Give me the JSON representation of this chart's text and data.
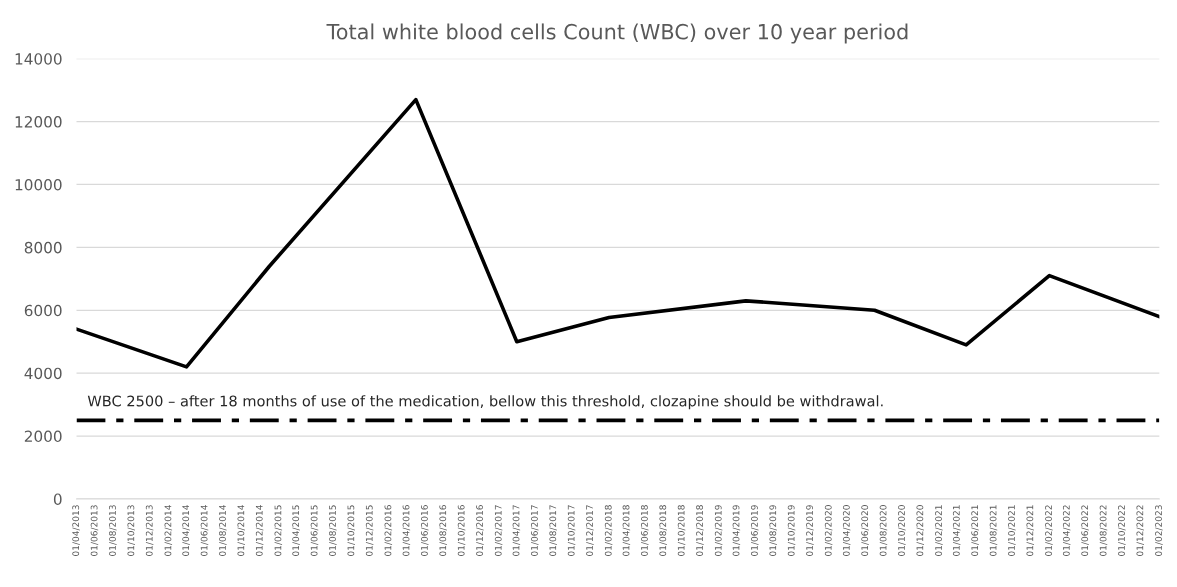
{
  "chart_data": {
    "type": "line",
    "title": "Total white blood cells Count (WBC) over 10 year period",
    "x": [
      "2013-04",
      "2014-04",
      "2015-01",
      "2016-05",
      "2017-04",
      "2018-02",
      "2019-05",
      "2020-07",
      "2021-05",
      "2022-02",
      "2023-02"
    ],
    "series": [
      {
        "color": "#000000",
        "values": [
          5400,
          4200,
          7400,
          12700,
          5000,
          5770,
          6300,
          6000,
          4900,
          7100,
          5800
        ]
      }
    ],
    "xlim": [
      "2013-04",
      "2023-02"
    ],
    "xticks": [
      {
        "value": "2013-04",
        "label": "01/04/2013"
      },
      {
        "value": "2013-06",
        "label": "01/06/2013"
      },
      {
        "value": "2013-08",
        "label": "01/08/2013"
      },
      {
        "value": "2013-10",
        "label": "01/10/2013"
      },
      {
        "value": "2013-12",
        "label": "01/12/2013"
      },
      {
        "value": "2014-02",
        "label": "01/02/2014"
      },
      {
        "value": "2014-04",
        "label": "01/04/2014"
      },
      {
        "value": "2014-06",
        "label": "01/06/2014"
      },
      {
        "value": "2014-08",
        "label": "01/08/2014"
      },
      {
        "value": "2014-10",
        "label": "01/10/2014"
      },
      {
        "value": "2014-12",
        "label": "01/12/2014"
      },
      {
        "value": "2015-02",
        "label": "01/02/2015"
      },
      {
        "value": "2015-04",
        "label": "01/04/2015"
      },
      {
        "value": "2015-06",
        "label": "01/06/2015"
      },
      {
        "value": "2015-08",
        "label": "01/08/2015"
      },
      {
        "value": "2015-10",
        "label": "01/10/2015"
      },
      {
        "value": "2015-12",
        "label": "01/12/2015"
      },
      {
        "value": "2016-02",
        "label": "01/02/2016"
      },
      {
        "value": "2016-04",
        "label": "01/04/2016"
      },
      {
        "value": "2016-06",
        "label": "01/06/2016"
      },
      {
        "value": "2016-08",
        "label": "01/08/2016"
      },
      {
        "value": "2016-10",
        "label": "01/10/2016"
      },
      {
        "value": "2016-12",
        "label": "01/12/2016"
      },
      {
        "value": "2017-02",
        "label": "01/02/2017"
      },
      {
        "value": "2017-04",
        "label": "01/04/2017"
      },
      {
        "value": "2017-06",
        "label": "01/06/2017"
      },
      {
        "value": "2017-08",
        "label": "01/08/2017"
      },
      {
        "value": "2017-10",
        "label": "01/10/2017"
      },
      {
        "value": "2017-12",
        "label": "01/12/2017"
      },
      {
        "value": "2018-02",
        "label": "01/02/2018"
      },
      {
        "value": "2018-04",
        "label": "01/04/2018"
      },
      {
        "value": "2018-06",
        "label": "01/06/2018"
      },
      {
        "value": "2018-08",
        "label": "01/08/2018"
      },
      {
        "value": "2018-10",
        "label": "01/10/2018"
      },
      {
        "value": "2018-12",
        "label": "01/12/2018"
      },
      {
        "value": "2019-02",
        "label": "01/02/2019"
      },
      {
        "value": "2019-04",
        "label": "01/04/2019"
      },
      {
        "value": "2019-06",
        "label": "01/06/2019"
      },
      {
        "value": "2019-08",
        "label": "01/08/2019"
      },
      {
        "value": "2019-10",
        "label": "01/10/2019"
      },
      {
        "value": "2019-12",
        "label": "01/12/2019"
      },
      {
        "value": "2020-02",
        "label": "01/02/2020"
      },
      {
        "value": "2020-04",
        "label": "01/04/2020"
      },
      {
        "value": "2020-06",
        "label": "01/06/2020"
      },
      {
        "value": "2020-08",
        "label": "01/08/2020"
      },
      {
        "value": "2020-10",
        "label": "01/10/2020"
      },
      {
        "value": "2020-12",
        "label": "01/12/2020"
      },
      {
        "value": "2021-02",
        "label": "01/02/2021"
      },
      {
        "value": "2021-04",
        "label": "01/04/2021"
      },
      {
        "value": "2021-06",
        "label": "01/06/2021"
      },
      {
        "value": "2021-08",
        "label": "01/08/2021"
      },
      {
        "value": "2021-10",
        "label": "01/10/2021"
      },
      {
        "value": "2021-12",
        "label": "01/12/2021"
      },
      {
        "value": "2022-02",
        "label": "01/02/2022"
      },
      {
        "value": "2022-04",
        "label": "01/04/2022"
      },
      {
        "value": "2022-06",
        "label": "01/06/2022"
      },
      {
        "value": "2022-08",
        "label": "01/08/2022"
      },
      {
        "value": "2022-10",
        "label": "01/10/2022"
      },
      {
        "value": "2022-12",
        "label": "01/12/2022"
      },
      {
        "value": "2023-02",
        "label": "01/02/2023"
      }
    ],
    "ylim": [
      0,
      14000
    ],
    "yticks": [
      0,
      2000,
      4000,
      6000,
      8000,
      10000,
      12000,
      14000
    ],
    "grid": "y",
    "ref_lines": [
      {
        "axis": "y",
        "value": 2500,
        "label": "WBC 2500 – after 18 months of use of the medication, bellow this threshold, clozapine should be withdrawal.",
        "color": "#000000",
        "line_style": "dashdot"
      }
    ]
  }
}
